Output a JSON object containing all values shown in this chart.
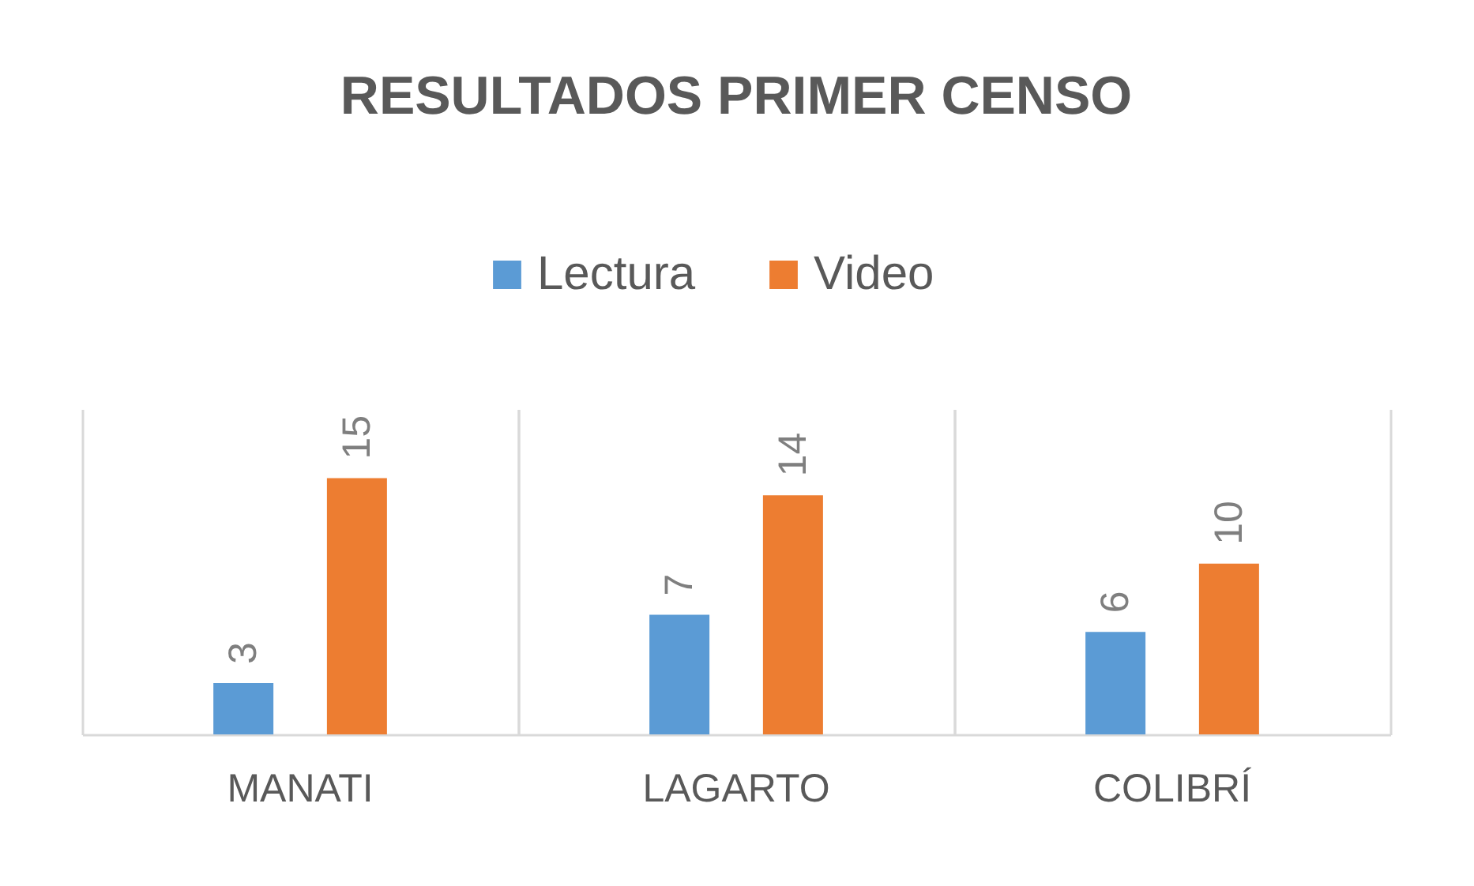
{
  "chart_data": {
    "type": "bar",
    "title": "RESULTADOS PRIMER CENSO",
    "categories": [
      "MANATI",
      "LAGARTO",
      "COLIBRÍ"
    ],
    "series": [
      {
        "name": "Lectura",
        "color": "#5b9bd5",
        "values": [
          3,
          7,
          6
        ]
      },
      {
        "name": "Video",
        "color": "#ed7d31",
        "values": [
          15,
          14,
          10
        ]
      }
    ],
    "data_labels": true,
    "grid": "x",
    "legend": "top"
  }
}
